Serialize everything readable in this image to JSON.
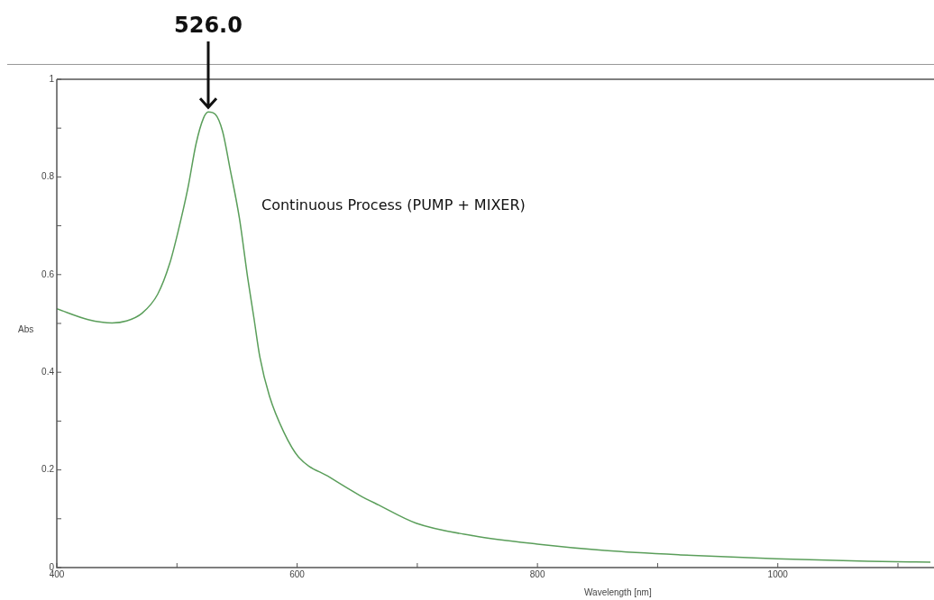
{
  "chart_data": {
    "type": "line",
    "xlabel": "Wavelength [nm]",
    "ylabel": "Abs",
    "annotations": [
      {
        "text": "526.0",
        "x": 526,
        "y": 0.933
      },
      "Continuous Process (PUMP + MIXER)"
    ],
    "series": [
      {
        "color": "#5a9e5a",
        "x": [
          400,
          426,
          446,
          458,
          471,
          484,
          494,
          501,
          509,
          516,
          522,
          526,
          532,
          538,
          544,
          552,
          559,
          564,
          569,
          577,
          589,
          601,
          627,
          652,
          668,
          699,
          747,
          800,
          856,
          919,
          999,
          1075,
          1127
        ],
        "values": [
          0.53,
          0.508,
          0.501,
          0.505,
          0.521,
          0.56,
          0.623,
          0.689,
          0.776,
          0.869,
          0.92,
          0.933,
          0.928,
          0.893,
          0.819,
          0.715,
          0.591,
          0.512,
          0.431,
          0.351,
          0.277,
          0.227,
          0.185,
          0.148,
          0.128,
          0.091,
          0.065,
          0.048,
          0.035,
          0.026,
          0.018,
          0.013,
          0.011
        ]
      }
    ],
    "xlim": [
      400,
      1130
    ],
    "xticks": [
      400,
      {
        "value": 500,
        "label": null
      },
      600,
      {
        "value": 700,
        "label": null
      },
      800,
      {
        "value": 900,
        "label": null
      },
      1000,
      {
        "value": 1100,
        "label": null
      }
    ],
    "ylim": [
      0,
      1
    ],
    "yticks": [
      0,
      {
        "value": 0.1,
        "label": null
      },
      0.2,
      {
        "value": 0.3,
        "label": null
      },
      0.4,
      {
        "value": 0.5,
        "label": null
      },
      0.6,
      {
        "value": 0.7,
        "label": null
      },
      0.8,
      {
        "value": 0.9,
        "label": null
      },
      1
    ],
    "grid": false,
    "legend": false,
    "marker": "none",
    "line_style": "solid"
  }
}
